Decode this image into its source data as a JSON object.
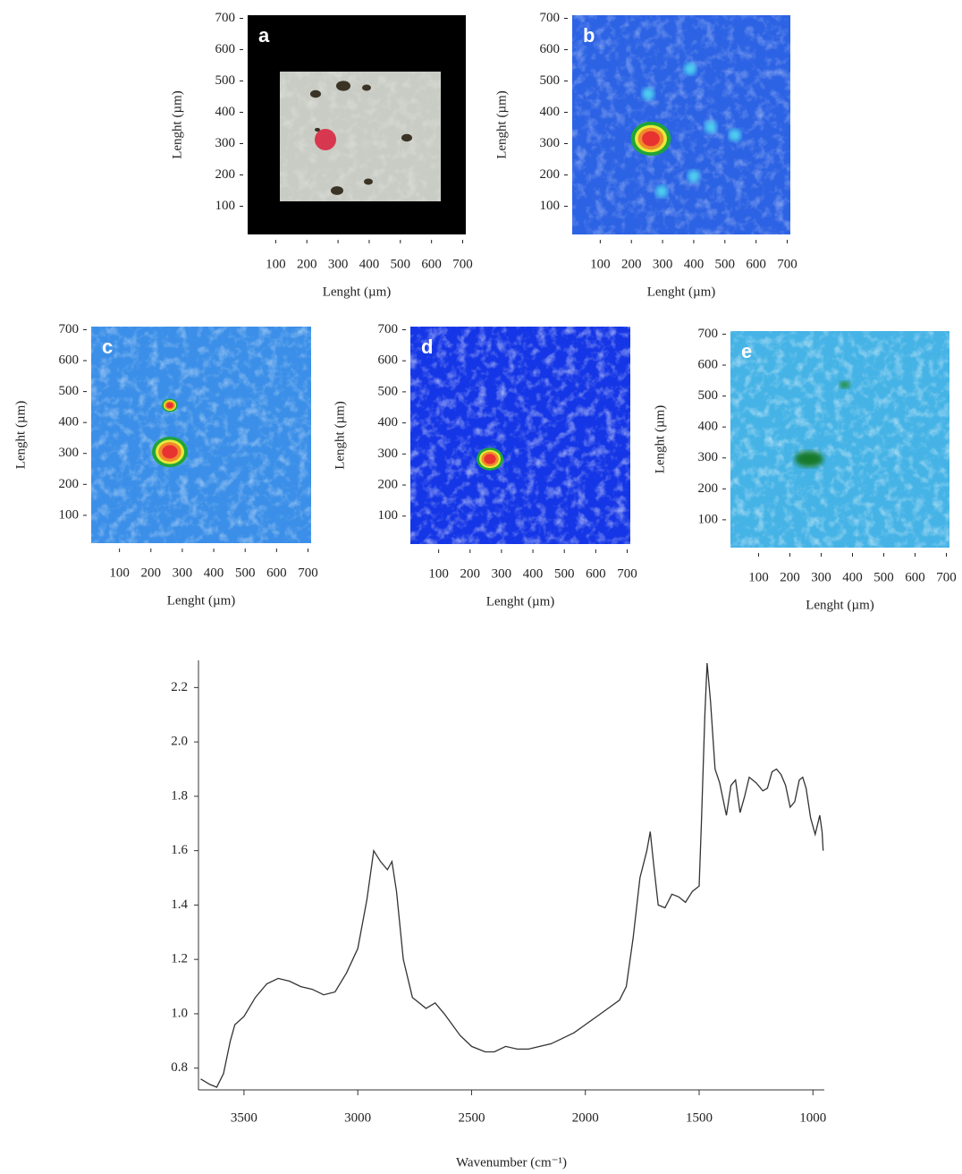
{
  "chart_data": [
    {
      "type": "image",
      "label": "a",
      "xlabel": "Lenght (µm)",
      "ylabel": "Lenght (µm)",
      "xlim": [
        10,
        710
      ],
      "ylim": [
        10,
        710
      ],
      "xticks": [
        100,
        200,
        300,
        400,
        500,
        600,
        700
      ],
      "yticks": [
        100,
        200,
        300,
        400,
        500,
        600,
        700
      ]
    },
    {
      "type": "image",
      "label": "b",
      "xlabel": "Lenght (µm)",
      "ylabel": "Lenght (µm)",
      "xlim": [
        10,
        710
      ],
      "ylim": [
        10,
        710
      ],
      "xticks": [
        100,
        200,
        300,
        400,
        500,
        600,
        700
      ],
      "yticks": [
        100,
        200,
        300,
        400,
        500,
        600,
        700
      ]
    },
    {
      "type": "image",
      "label": "c",
      "xlabel": "Lenght (µm)",
      "ylabel": "Lenght (µm)",
      "xlim": [
        10,
        710
      ],
      "ylim": [
        10,
        710
      ],
      "xticks": [
        100,
        200,
        300,
        400,
        500,
        600,
        700
      ],
      "yticks": [
        100,
        200,
        300,
        400,
        500,
        600,
        700
      ]
    },
    {
      "type": "image",
      "label": "d",
      "xlabel": "Lenght (µm)",
      "ylabel": "Lenght (µm)",
      "xlim": [
        10,
        710
      ],
      "ylim": [
        10,
        710
      ],
      "xticks": [
        100,
        200,
        300,
        400,
        500,
        600,
        700
      ],
      "yticks": [
        100,
        200,
        300,
        400,
        500,
        600,
        700
      ]
    },
    {
      "type": "image",
      "label": "e",
      "xlabel": "Lenght (µm)",
      "ylabel": "Lenght (µm)",
      "xlim": [
        10,
        710
      ],
      "ylim": [
        10,
        710
      ],
      "xticks": [
        100,
        200,
        300,
        400,
        500,
        600,
        700
      ],
      "yticks": [
        100,
        200,
        300,
        400,
        500,
        600,
        700
      ]
    },
    {
      "type": "line",
      "xlabel": "Wavenumber (cm⁻¹)",
      "color": "#333333",
      "xlim": [
        3700,
        950
      ],
      "ylim": [
        0.72,
        2.3
      ],
      "xticks": [
        3500,
        3000,
        2500,
        2000,
        1500,
        1000
      ],
      "yticks": [
        0.8,
        {
          "value": 1,
          "label": "1.0"
        },
        1.2,
        1.4,
        1.6,
        1.8,
        {
          "value": 2,
          "label": "2.0"
        },
        2.2
      ],
      "x": [
        3690,
        3650,
        3620,
        3590,
        3560,
        3540,
        3500,
        3450,
        3400,
        3350,
        3300,
        3250,
        3200,
        3150,
        3100,
        3050,
        3000,
        2960,
        2930,
        2900,
        2870,
        2850,
        2830,
        2800,
        2760,
        2700,
        2660,
        2620,
        2550,
        2500,
        2440,
        2400,
        2350,
        2300,
        2250,
        2200,
        2150,
        2100,
        2050,
        2000,
        1950,
        1900,
        1850,
        1820,
        1790,
        1760,
        1730,
        1715,
        1700,
        1680,
        1650,
        1620,
        1590,
        1560,
        1530,
        1500,
        1490,
        1475,
        1465,
        1450,
        1430,
        1410,
        1380,
        1360,
        1340,
        1320,
        1300,
        1280,
        1250,
        1220,
        1200,
        1180,
        1160,
        1140,
        1120,
        1100,
        1080,
        1060,
        1045,
        1030,
        1010,
        990,
        970,
        960,
        955
      ],
      "values": [
        0.76,
        0.74,
        0.73,
        0.78,
        0.9,
        0.96,
        0.99,
        1.06,
        1.11,
        1.13,
        1.12,
        1.1,
        1.09,
        1.07,
        1.08,
        1.15,
        1.24,
        1.42,
        1.6,
        1.56,
        1.53,
        1.56,
        1.45,
        1.2,
        1.06,
        1.02,
        1.04,
        1.0,
        0.92,
        0.88,
        0.86,
        0.86,
        0.88,
        0.87,
        0.87,
        0.88,
        0.89,
        0.91,
        0.93,
        0.96,
        0.99,
        1.02,
        1.05,
        1.1,
        1.28,
        1.5,
        1.6,
        1.67,
        1.55,
        1.4,
        1.39,
        1.44,
        1.43,
        1.41,
        1.45,
        1.47,
        1.7,
        2.1,
        2.29,
        2.15,
        1.9,
        1.85,
        1.73,
        1.84,
        1.86,
        1.74,
        1.8,
        1.87,
        1.85,
        1.82,
        1.83,
        1.89,
        1.9,
        1.88,
        1.84,
        1.76,
        1.78,
        1.86,
        1.87,
        1.83,
        1.72,
        1.66,
        1.73,
        1.67,
        1.6
      ]
    }
  ]
}
